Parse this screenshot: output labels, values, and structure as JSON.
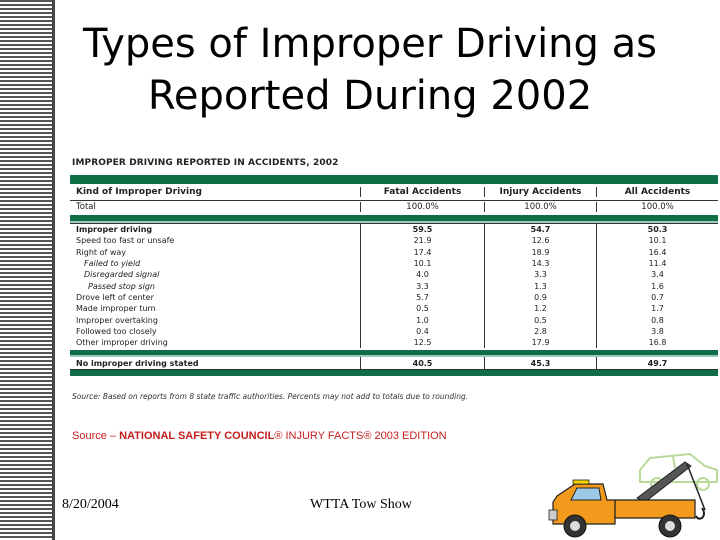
{
  "slide": {
    "title_line1": "Types of Improper Driving as",
    "title_line2": "Reported During 2002",
    "footer_date": "8/20/2004",
    "footer_center": "WTTA Tow Show"
  },
  "table": {
    "caption": "IMPROPER DRIVING REPORTED IN ACCIDENTS, 2002",
    "headers": [
      "Kind of Improper Driving",
      "Fatal Accidents",
      "Injury Accidents",
      "All Accidents"
    ],
    "total": [
      "Total",
      "100.0%",
      "100.0%",
      "100.0%"
    ],
    "rows": [
      {
        "label": "Improper driving",
        "fatal": "59.5",
        "injury": "54.7",
        "all": "50.3"
      },
      {
        "label": "Speed too fast or unsafe",
        "fatal": "21.9",
        "injury": "12.6",
        "all": "10.1"
      },
      {
        "label": "Right of way",
        "fatal": "17.4",
        "injury": "18.9",
        "all": "16.4"
      },
      {
        "label": "Failed to yield",
        "fatal": "10.1",
        "injury": "14.3",
        "all": "11.4"
      },
      {
        "label": "Disregarded signal",
        "fatal": "4.0",
        "injury": "3.3",
        "all": "3.4"
      },
      {
        "label": "Passed stop sign",
        "fatal": "3.3",
        "injury": "1.3",
        "all": "1.6"
      },
      {
        "label": "Drove left of center",
        "fatal": "5.7",
        "injury": "0.9",
        "all": "0.7"
      },
      {
        "label": "Made improper turn",
        "fatal": "0.5",
        "injury": "1.2",
        "all": "1.7"
      },
      {
        "label": "Improper overtaking",
        "fatal": "1.0",
        "injury": "0.5",
        "all": "0.8"
      },
      {
        "label": "Followed too closely",
        "fatal": "0.4",
        "injury": "2.8",
        "all": "3.8"
      },
      {
        "label": "Other improper driving",
        "fatal": "12.5",
        "injury": "17.9",
        "all": "16.8"
      }
    ],
    "no_improper": {
      "label": "No improper driving stated",
      "fatal": "40.5",
      "injury": "45.3",
      "all": "49.7"
    },
    "source_note": "Source: Based on reports from 8 state traffic authorities. Percents may not add to totals due to rounding."
  },
  "source_line": {
    "prefix": "Source – ",
    "bold_part": "NATIONAL SAFETY COUNCIL",
    "rest": "® INJURY FACTS® 2003 EDITION"
  },
  "colors": {
    "table_green": "#0f6e45",
    "source_red": "#c41e1e",
    "truck_orange": "#f39a1c"
  },
  "icons": {
    "truck": "tow-truck-illustration"
  }
}
